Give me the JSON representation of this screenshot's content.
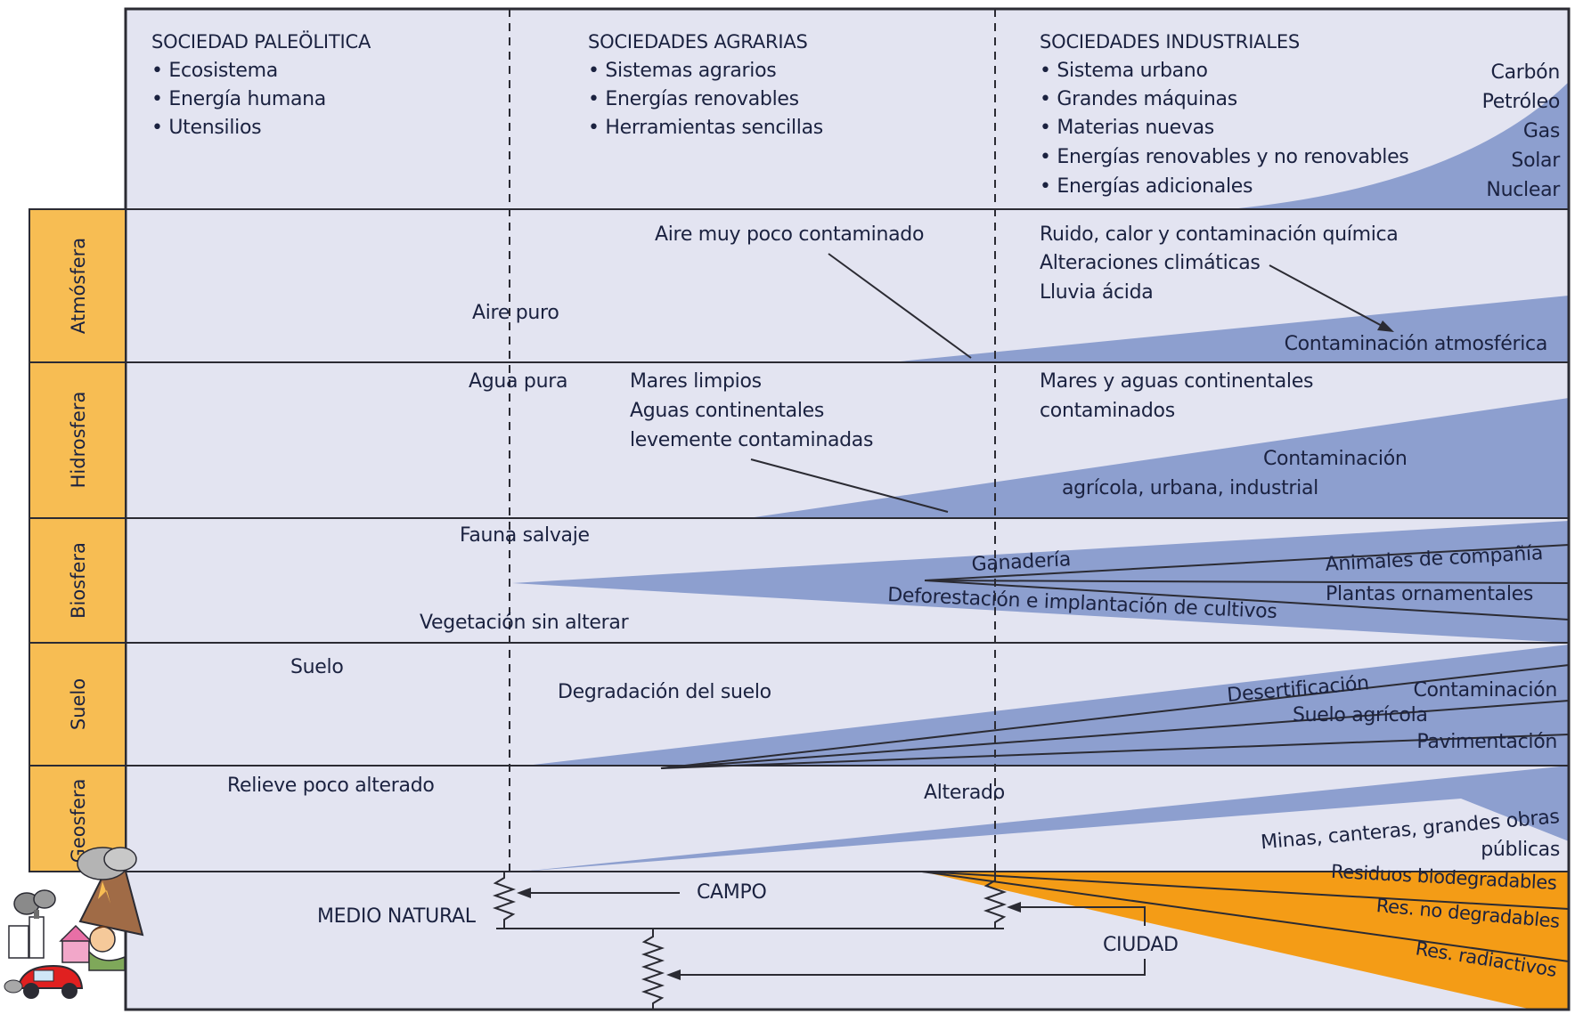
{
  "headers": {
    "paleolithic": {
      "title": "SOCIEDAD PALEÖLITICA",
      "items": [
        "• Ecosistema",
        "• Energía humana",
        "• Utensilios"
      ]
    },
    "agrarian": {
      "title": "SOCIEDADES AGRARIAS",
      "items": [
        "• Sistemas agrarios",
        "• Energías renovables",
        "• Herramientas sencillas"
      ]
    },
    "industrial": {
      "title": "SOCIEDADES INDUSTRIALES",
      "items": [
        "• Sistema urbano",
        "• Grandes máquinas",
        "• Materias nuevas",
        "• Energías renovables y no renovables",
        "• Energías adicionales"
      ]
    }
  },
  "energy_sources": [
    "Carbón",
    "Petróleo",
    "Gas",
    "Solar",
    "Nuclear"
  ],
  "spheres": [
    "Atmósfera",
    "Hidrosfera",
    "Biosfera",
    "Suelo",
    "Geosfera"
  ],
  "atmosphere": {
    "aire_puro": "Aire puro",
    "poco_contaminado": "Aire muy poco contaminado",
    "industrial": [
      "Ruido, calor y contaminación química",
      "Alteraciones climáticas",
      "Lluvia ácida"
    ],
    "contaminacion": "Contaminación atmosférica"
  },
  "hydrosphere": {
    "agua_pura": "Agua pura",
    "agrarian": [
      "Mares limpios",
      "Aguas continentales",
      "levemente contaminadas"
    ],
    "industrial": [
      "Mares y aguas continentales",
      "contaminados"
    ],
    "contaminacion": [
      "Contaminación",
      "agrícola, urbana, industrial"
    ]
  },
  "biosphere": {
    "fauna": "Fauna salvaje",
    "vegetacion": "Vegetación sin alterar",
    "ganaderia": "Ganadería",
    "deforestacion": "Deforestación e implantación de cultivos",
    "animales": "Animales de compañía",
    "plantas": "Plantas ornamentales"
  },
  "soil": {
    "suelo": "Suelo",
    "degradacion": "Degradación del suelo",
    "desertificacion": "Desertificación",
    "contaminacion": "Contaminación",
    "agricola": "Suelo agrícola",
    "pavimentacion": "Pavimentación"
  },
  "geosphere": {
    "relieve": "Relieve poco alterado",
    "alterado": "Alterado",
    "minas": [
      "Minas, canteras, grandes obras",
      "públicas"
    ]
  },
  "bottom": {
    "medio_natural": "MEDIO NATURAL",
    "campo": "CAMPO",
    "ciudad": "CIUDAD",
    "residuos": [
      "Residuos biodegradables",
      "Res. no degradables",
      "Res. radiactivos"
    ]
  },
  "colors": {
    "panel": "#e3e4f1",
    "wedge": "#8d9fcf",
    "label": "#f7bd53",
    "waste": "#f49c16",
    "border": "#2b2b33"
  }
}
